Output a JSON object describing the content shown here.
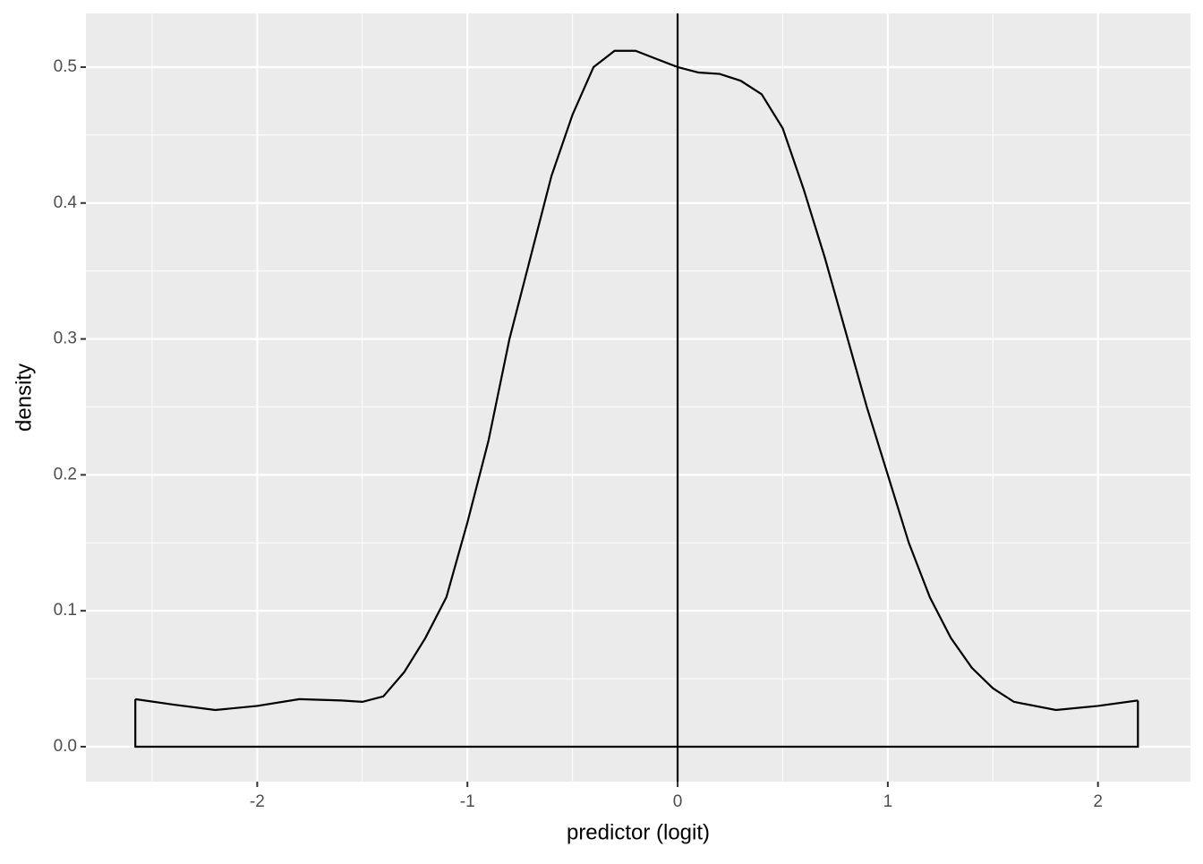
{
  "chart_data": {
    "type": "density",
    "x_label": "predictor (logit)",
    "y_label": "density",
    "x": [
      -2.58,
      -2.4,
      -2.2,
      -2.0,
      -1.8,
      -1.6,
      -1.5,
      -1.4,
      -1.3,
      -1.2,
      -1.1,
      -1.0,
      -0.9,
      -0.8,
      -0.7,
      -0.6,
      -0.5,
      -0.4,
      -0.3,
      -0.2,
      -0.1,
      0,
      0.1,
      0.2,
      0.3,
      0.4,
      0.5,
      0.6,
      0.7,
      0.8,
      0.9,
      1.0,
      1.1,
      1.2,
      1.3,
      1.4,
      1.5,
      1.6,
      1.8,
      2.0,
      2.19
    ],
    "values": [
      0.035,
      0.031,
      0.027,
      0.03,
      0.035,
      0.034,
      0.033,
      0.037,
      0.055,
      0.08,
      0.11,
      0.165,
      0.225,
      0.3,
      0.36,
      0.42,
      0.465,
      0.5,
      0.512,
      0.512,
      0.506,
      0.5,
      0.496,
      0.495,
      0.49,
      0.48,
      0.455,
      0.41,
      0.36,
      0.305,
      0.25,
      0.2,
      0.15,
      0.11,
      0.08,
      0.058,
      0.043,
      0.033,
      0.027,
      0.03,
      0.034
    ],
    "color": "#000000",
    "vline": 0,
    "xlim": [
      -2.815,
      2.44
    ],
    "ylim": [
      -0.0257,
      0.5395
    ],
    "xticks": [
      -2,
      -1,
      0,
      1,
      2
    ],
    "yticks": [
      {
        "value": 0,
        "label": "0.0"
      },
      0.1,
      0.2,
      0.3,
      0.4,
      0.5
    ],
    "grid": true,
    "minor_grid": true
  }
}
